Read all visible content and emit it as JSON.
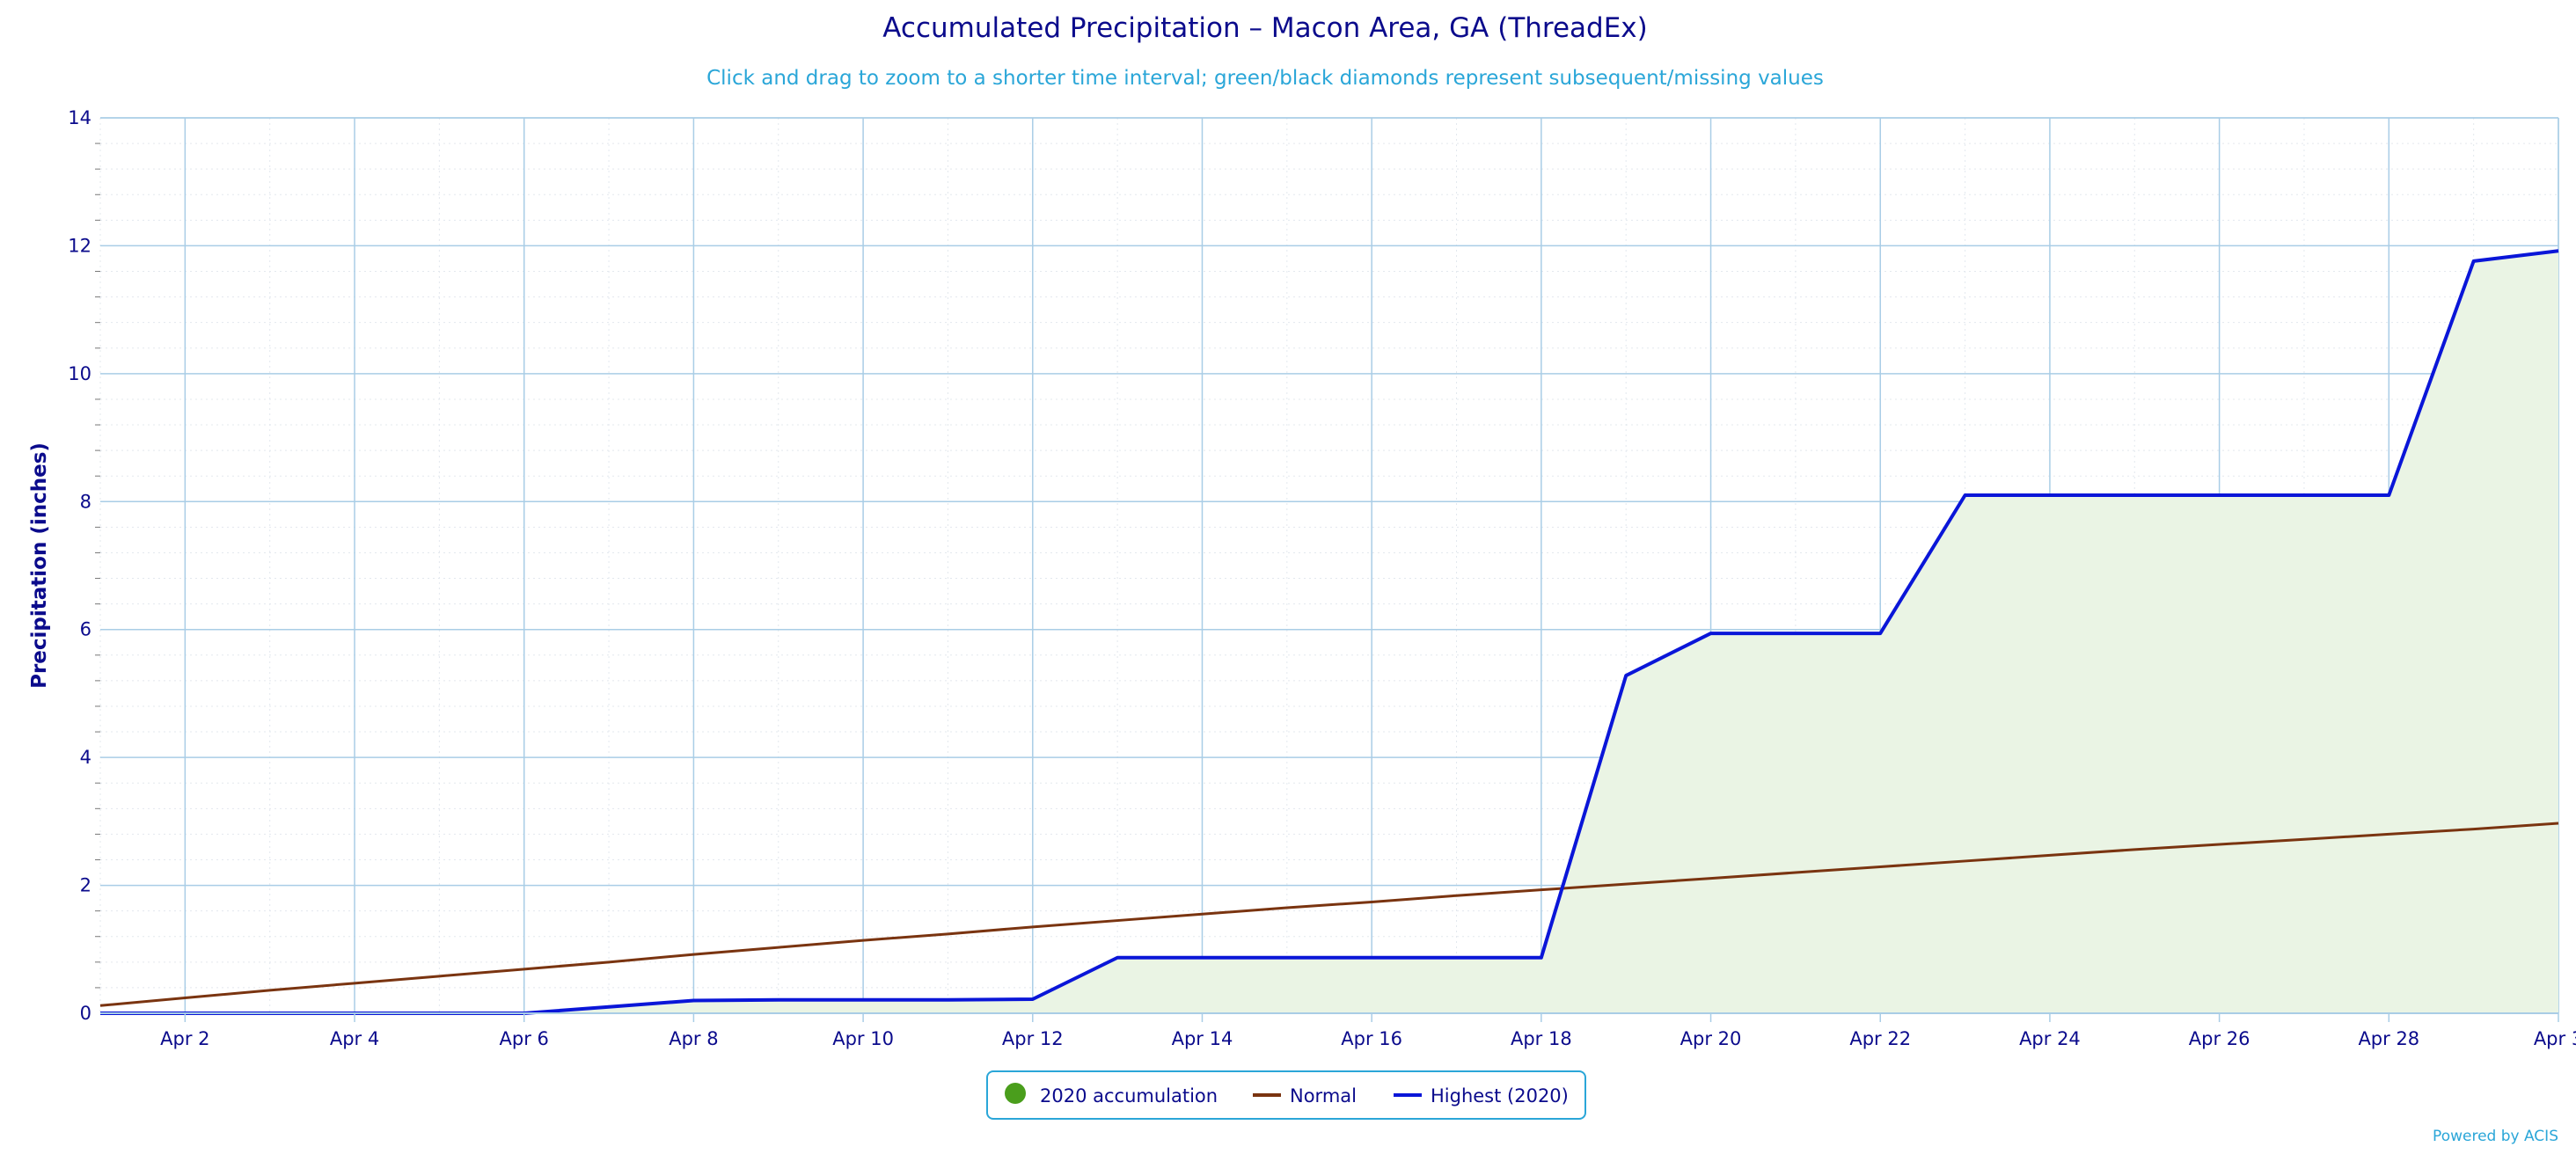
{
  "chart_data": {
    "type": "area",
    "title": "Accumulated Precipitation – Macon Area, GA (ThreadEx)",
    "subtitle": "Click and drag to zoom to a shorter time interval; green/black diamonds represent subsequent/missing values",
    "xlabel": "",
    "ylabel": "Precipitation (inches)",
    "ylim": [
      0,
      14
    ],
    "yticks": [
      0,
      2,
      4,
      6,
      8,
      10,
      12,
      14
    ],
    "xlim": [
      1,
      30
    ],
    "xticks": [
      {
        "day": 2,
        "label": "Apr 2"
      },
      {
        "day": 4,
        "label": "Apr 4"
      },
      {
        "day": 6,
        "label": "Apr 6"
      },
      {
        "day": 8,
        "label": "Apr 8"
      },
      {
        "day": 10,
        "label": "Apr 10"
      },
      {
        "day": 12,
        "label": "Apr 12"
      },
      {
        "day": 14,
        "label": "Apr 14"
      },
      {
        "day": 16,
        "label": "Apr 16"
      },
      {
        "day": 18,
        "label": "Apr 18"
      },
      {
        "day": 20,
        "label": "Apr 20"
      },
      {
        "day": 22,
        "label": "Apr 22"
      },
      {
        "day": 24,
        "label": "Apr 24"
      },
      {
        "day": 26,
        "label": "Apr 26"
      },
      {
        "day": 28,
        "label": "Apr 28"
      },
      {
        "day": 30,
        "label": "Apr 3"
      }
    ],
    "grid": true,
    "legend_position": "bottom-center",
    "series": [
      {
        "name": "2020 accumulation",
        "kind": "area",
        "color": "#4a9e1c",
        "fill": "#eaf4e4",
        "x": [
          1,
          2,
          3,
          4,
          5,
          6,
          7,
          8,
          9,
          10,
          11,
          12,
          13,
          14,
          15,
          16,
          17,
          18,
          19,
          20,
          21,
          22,
          23,
          24,
          25,
          26,
          27,
          28,
          29,
          30
        ],
        "y": [
          0,
          0,
          0,
          0,
          0,
          0,
          0.1,
          0.2,
          0.21,
          0.21,
          0.21,
          0.22,
          0.87,
          0.87,
          0.87,
          0.87,
          0.87,
          0.87,
          5.28,
          5.94,
          5.94,
          5.94,
          8.1,
          8.1,
          8.1,
          8.1,
          8.1,
          8.1,
          11.76,
          11.92
        ]
      },
      {
        "name": "Normal",
        "kind": "line",
        "color": "#7a3410",
        "x": [
          1,
          2,
          3,
          4,
          5,
          6,
          7,
          8,
          9,
          10,
          11,
          12,
          13,
          14,
          15,
          16,
          17,
          18,
          19,
          20,
          21,
          22,
          23,
          24,
          25,
          26,
          27,
          28,
          29,
          30
        ],
        "y": [
          0.12,
          0.24,
          0.36,
          0.47,
          0.58,
          0.69,
          0.8,
          0.92,
          1.03,
          1.14,
          1.24,
          1.35,
          1.45,
          1.55,
          1.65,
          1.74,
          1.84,
          1.93,
          2.02,
          2.11,
          2.2,
          2.29,
          2.38,
          2.47,
          2.56,
          2.64,
          2.72,
          2.8,
          2.88,
          2.97
        ]
      },
      {
        "name": "Highest (2020)",
        "kind": "line",
        "color": "#0a16d8",
        "x": [
          1,
          2,
          3,
          4,
          5,
          6,
          7,
          8,
          9,
          10,
          11,
          12,
          13,
          14,
          15,
          16,
          17,
          18,
          19,
          20,
          21,
          22,
          23,
          24,
          25,
          26,
          27,
          28,
          29,
          30
        ],
        "y": [
          0,
          0,
          0,
          0,
          0,
          0,
          0.1,
          0.2,
          0.21,
          0.21,
          0.21,
          0.22,
          0.87,
          0.87,
          0.87,
          0.87,
          0.87,
          0.87,
          5.28,
          5.94,
          5.94,
          5.94,
          8.1,
          8.1,
          8.1,
          8.1,
          8.1,
          8.1,
          11.76,
          11.92
        ]
      }
    ],
    "credit": "Powered by ACIS",
    "colors": {
      "title": "#0b0b8c",
      "subtitle": "#2aa6d8",
      "axis_text": "#0b0b8c",
      "grid": "#a9cde6",
      "minor_grid": "#e3e8ee",
      "legend_border": "#2aa6d8",
      "credit": "#2aa6d8"
    }
  }
}
